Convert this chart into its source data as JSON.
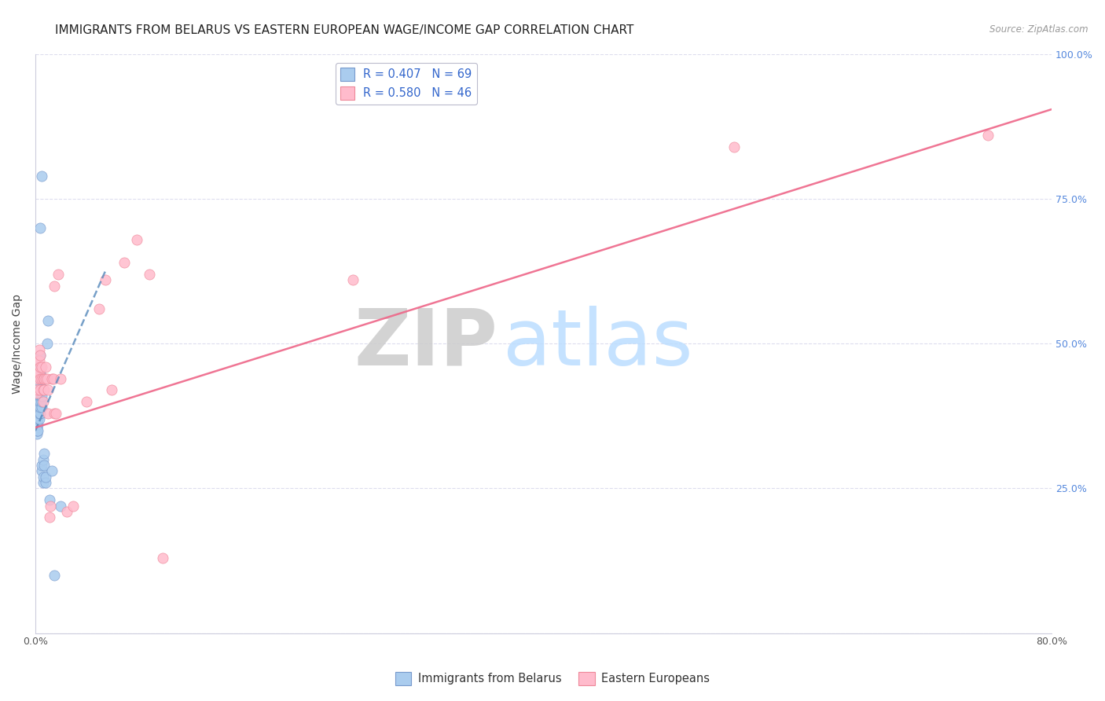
{
  "title": "IMMIGRANTS FROM BELARUS VS EASTERN EUROPEAN WAGE/INCOME GAP CORRELATION CHART",
  "source": "Source: ZipAtlas.com",
  "ylabel": "Wage/Income Gap",
  "xlim": [
    0.0,
    0.8
  ],
  "ylim": [
    0.0,
    1.0
  ],
  "xtick_vals": [
    0.0,
    0.2,
    0.4,
    0.6,
    0.8
  ],
  "xtick_labels": [
    "0.0%",
    "",
    "",
    "",
    "80.0%"
  ],
  "ytick_vals": [
    0.0,
    0.25,
    0.5,
    0.75,
    1.0
  ],
  "ytick_labels_right": [
    "",
    "25.0%",
    "50.0%",
    "75.0%",
    "100.0%"
  ],
  "legend_label1": "Immigrants from Belarus",
  "legend_label2": "Eastern Europeans",
  "R1": 0.407,
  "N1": 69,
  "R2": 0.58,
  "N2": 46,
  "blue_color_fill": "#AACCEE",
  "blue_color_edge": "#7799CC",
  "pink_color_fill": "#FFBBCC",
  "pink_color_edge": "#EE8899",
  "blue_scatter": [
    [
      0.001,
      0.355
    ],
    [
      0.001,
      0.36
    ],
    [
      0.001,
      0.365
    ],
    [
      0.001,
      0.37
    ],
    [
      0.001,
      0.375
    ],
    [
      0.001,
      0.38
    ],
    [
      0.001,
      0.385
    ],
    [
      0.001,
      0.39
    ],
    [
      0.001,
      0.395
    ],
    [
      0.001,
      0.4
    ],
    [
      0.001,
      0.405
    ],
    [
      0.001,
      0.41
    ],
    [
      0.001,
      0.345
    ],
    [
      0.001,
      0.35
    ],
    [
      0.001,
      0.415
    ],
    [
      0.001,
      0.42
    ],
    [
      0.002,
      0.36
    ],
    [
      0.002,
      0.37
    ],
    [
      0.002,
      0.38
    ],
    [
      0.002,
      0.39
    ],
    [
      0.002,
      0.4
    ],
    [
      0.002,
      0.41
    ],
    [
      0.002,
      0.42
    ],
    [
      0.002,
      0.43
    ],
    [
      0.002,
      0.44
    ],
    [
      0.002,
      0.45
    ],
    [
      0.002,
      0.46
    ],
    [
      0.002,
      0.35
    ],
    [
      0.003,
      0.37
    ],
    [
      0.003,
      0.38
    ],
    [
      0.003,
      0.39
    ],
    [
      0.003,
      0.4
    ],
    [
      0.003,
      0.41
    ],
    [
      0.003,
      0.42
    ],
    [
      0.003,
      0.43
    ],
    [
      0.003,
      0.44
    ],
    [
      0.003,
      0.45
    ],
    [
      0.003,
      0.46
    ],
    [
      0.004,
      0.38
    ],
    [
      0.004,
      0.39
    ],
    [
      0.004,
      0.4
    ],
    [
      0.004,
      0.41
    ],
    [
      0.004,
      0.42
    ],
    [
      0.004,
      0.43
    ],
    [
      0.004,
      0.44
    ],
    [
      0.004,
      0.45
    ],
    [
      0.004,
      0.46
    ],
    [
      0.004,
      0.48
    ],
    [
      0.005,
      0.39
    ],
    [
      0.005,
      0.4
    ],
    [
      0.005,
      0.41
    ],
    [
      0.005,
      0.42
    ],
    [
      0.005,
      0.28
    ],
    [
      0.005,
      0.29
    ],
    [
      0.006,
      0.26
    ],
    [
      0.006,
      0.27
    ],
    [
      0.006,
      0.3
    ],
    [
      0.007,
      0.29
    ],
    [
      0.007,
      0.31
    ],
    [
      0.008,
      0.26
    ],
    [
      0.008,
      0.27
    ],
    [
      0.009,
      0.5
    ],
    [
      0.01,
      0.54
    ],
    [
      0.011,
      0.23
    ],
    [
      0.013,
      0.28
    ],
    [
      0.015,
      0.1
    ],
    [
      0.02,
      0.22
    ],
    [
      0.004,
      0.7
    ],
    [
      0.005,
      0.79
    ]
  ],
  "pink_scatter": [
    [
      0.001,
      0.415
    ],
    [
      0.001,
      0.44
    ],
    [
      0.002,
      0.42
    ],
    [
      0.002,
      0.45
    ],
    [
      0.002,
      0.47
    ],
    [
      0.003,
      0.45
    ],
    [
      0.003,
      0.47
    ],
    [
      0.003,
      0.49
    ],
    [
      0.004,
      0.44
    ],
    [
      0.004,
      0.46
    ],
    [
      0.004,
      0.48
    ],
    [
      0.004,
      0.42
    ],
    [
      0.005,
      0.44
    ],
    [
      0.005,
      0.46
    ],
    [
      0.006,
      0.4
    ],
    [
      0.006,
      0.42
    ],
    [
      0.006,
      0.44
    ],
    [
      0.007,
      0.42
    ],
    [
      0.007,
      0.44
    ],
    [
      0.008,
      0.44
    ],
    [
      0.008,
      0.46
    ],
    [
      0.009,
      0.44
    ],
    [
      0.01,
      0.42
    ],
    [
      0.01,
      0.38
    ],
    [
      0.011,
      0.2
    ],
    [
      0.012,
      0.22
    ],
    [
      0.013,
      0.44
    ],
    [
      0.014,
      0.44
    ],
    [
      0.015,
      0.38
    ],
    [
      0.015,
      0.6
    ],
    [
      0.016,
      0.38
    ],
    [
      0.018,
      0.62
    ],
    [
      0.02,
      0.44
    ],
    [
      0.025,
      0.21
    ],
    [
      0.03,
      0.22
    ],
    [
      0.04,
      0.4
    ],
    [
      0.05,
      0.56
    ],
    [
      0.055,
      0.61
    ],
    [
      0.06,
      0.42
    ],
    [
      0.07,
      0.64
    ],
    [
      0.08,
      0.68
    ],
    [
      0.09,
      0.62
    ],
    [
      0.1,
      0.13
    ],
    [
      0.25,
      0.61
    ],
    [
      0.55,
      0.84
    ],
    [
      0.75,
      0.86
    ]
  ],
  "blue_line_x": [
    -0.01,
    0.055
  ],
  "blue_line_y": [
    0.3,
    0.625
  ],
  "pink_line_x": [
    0.0,
    0.8
  ],
  "pink_line_y": [
    0.355,
    0.905
  ],
  "watermark_zip": "ZIP",
  "watermark_atlas": "atlas",
  "bg_color": "#FFFFFF",
  "grid_color": "#DDDDEE",
  "title_fontsize": 11,
  "source_fontsize": 8.5,
  "axis_label_fontsize": 10,
  "tick_fontsize": 9,
  "legend_fontsize": 10.5
}
